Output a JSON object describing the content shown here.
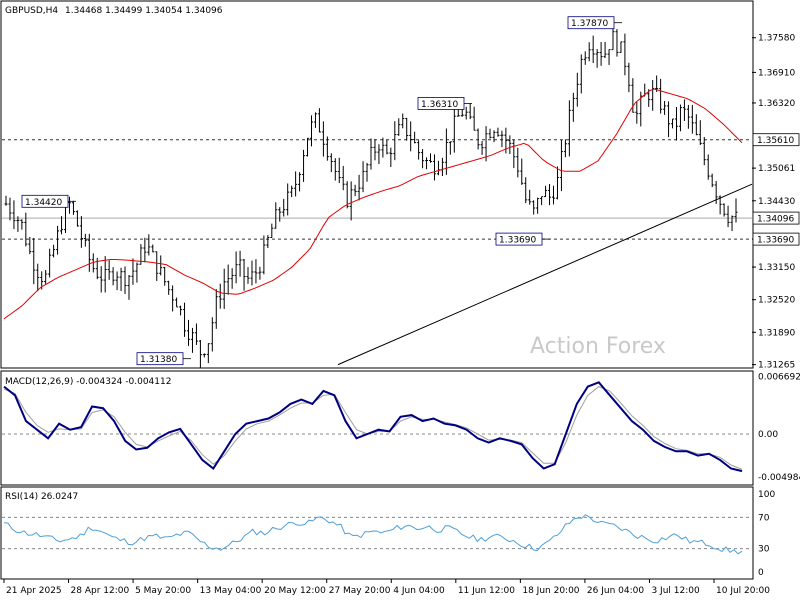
{
  "header": {
    "symbol": "GBPUSD,H4",
    "ohlc": "1.34468 1.34499 1.34054 1.34096"
  },
  "watermark": "Action Forex",
  "colors": {
    "price": "#000000",
    "ma": "#e00000",
    "macd": "#000080",
    "signal": "#a0a0a0",
    "rsi": "#4f9fd8",
    "price_box_bg": "#ffffff",
    "current_box_bg": "#ffffff"
  },
  "chart_data": [
    {
      "type": "candlestick",
      "title": "GBPUSD,H4",
      "ylim": [
        1.312,
        1.3827
      ],
      "y_ticks": [
        "1.37580",
        "1.36910",
        "1.36320",
        "1.35061",
        "1.34430",
        "1.33690",
        "1.33150",
        "1.32520",
        "1.31890",
        "1.31265"
      ],
      "x_ticks": [
        "21 Apr 2025",
        "28 Apr 12:00",
        "5 May 20:00",
        "13 May 04:00",
        "20 May 12:00",
        "27 May 20:00",
        "4 Jun 04:00",
        "11 Jun 12:00",
        "18 Jun 20:00",
        "26 Jun 04:00",
        "3 Jul 12:00",
        "10 Jul 20:00"
      ],
      "price_labels": [
        {
          "value": 1.3442,
          "text": "1.34420"
        },
        {
          "value": 1.3631,
          "text": "1.36310"
        },
        {
          "value": 1.3787,
          "text": "1.37870"
        },
        {
          "value": 1.3369,
          "text": "1.33690"
        },
        {
          "value": 1.3138,
          "text": "1.31380"
        }
      ],
      "horizontal_levels": [
        {
          "value": 1.3561,
          "text": "1.35610",
          "style": "dashed"
        },
        {
          "value": 1.3369,
          "text": "1.33690",
          "style": "dashed"
        },
        {
          "value": 1.34096,
          "text": "1.34096",
          "style": "solid-grey"
        }
      ],
      "trendline": {
        "from": 1.31265,
        "to": 1.3475
      },
      "close_path": [
        1.3437,
        1.342,
        1.3398,
        1.3345,
        1.331,
        1.329,
        1.334,
        1.3395,
        1.3442,
        1.3405,
        1.336,
        1.3318,
        1.33,
        1.3292,
        1.331,
        1.3295,
        1.33,
        1.3325,
        1.336,
        1.333,
        1.33,
        1.327,
        1.325,
        1.3205,
        1.318,
        1.315,
        1.317,
        1.324,
        1.3285,
        1.33,
        1.3315,
        1.329,
        1.33,
        1.333,
        1.338,
        1.342,
        1.344,
        1.346,
        1.352,
        1.358,
        1.36,
        1.356,
        1.352,
        1.347,
        1.3445,
        1.347,
        1.349,
        1.353,
        1.3555,
        1.353,
        1.356,
        1.359,
        1.357,
        1.354,
        1.352,
        1.351,
        1.3525,
        1.356,
        1.36,
        1.362,
        1.358,
        1.3555,
        1.3575,
        1.359,
        1.357,
        1.3545,
        1.3505,
        1.344,
        1.342,
        1.346,
        1.345,
        1.348,
        1.356,
        1.364,
        1.371,
        1.375,
        1.374,
        1.3725,
        1.376,
        1.374,
        1.37,
        1.36,
        1.364,
        1.3655,
        1.364,
        1.361,
        1.358,
        1.362,
        1.36,
        1.356,
        1.352,
        1.348,
        1.344,
        1.3415,
        1.3409
      ],
      "ma_path": [
        1.3215,
        1.324,
        1.3275,
        1.3295,
        1.331,
        1.3325,
        1.333,
        1.3328,
        1.3325,
        1.332,
        1.33,
        1.3285,
        1.3265,
        1.3262,
        1.3275,
        1.329,
        1.3315,
        1.335,
        1.341,
        1.3435,
        1.345,
        1.3462,
        1.3472,
        1.349,
        1.35,
        1.351,
        1.352,
        1.353,
        1.3545,
        1.3555,
        1.352,
        1.35,
        1.35,
        1.352,
        1.357,
        1.363,
        1.366,
        1.365,
        1.364,
        1.362,
        1.359,
        1.3555
      ]
    },
    {
      "type": "line",
      "title": "MACD(12,26,9) -0.004324 -0.004112",
      "ylim": [
        -0.0058,
        0.0072
      ],
      "y_ticks": [
        "0.006692",
        "0.00",
        "-0.004984"
      ],
      "series": [
        {
          "name": "MACD",
          "values": [
            0.0055,
            0.0045,
            0.0015,
            0.0005,
            -0.0005,
            0.0012,
            0.0005,
            0.0008,
            0.0032,
            0.003,
            0.0015,
            -0.0008,
            -0.0018,
            -0.0016,
            -0.0005,
            0.0002,
            0.0006,
            -0.0012,
            -0.003,
            -0.004,
            -0.002,
            0.0,
            0.0012,
            0.0015,
            0.0018,
            0.0025,
            0.0035,
            0.004,
            0.0035,
            0.005,
            0.0045,
            0.0015,
            -0.0005,
            0.0,
            0.0005,
            0.0003,
            0.002,
            0.0022,
            0.0015,
            0.0018,
            0.0012,
            0.001,
            0.0005,
            -0.0005,
            -0.001,
            -0.0005,
            -0.0008,
            -0.0012,
            -0.0028,
            -0.004,
            -0.0035,
            0.0,
            0.0035,
            0.0055,
            0.006,
            0.0045,
            0.003,
            0.0015,
            0.0005,
            -0.0008,
            -0.0015,
            -0.002,
            -0.002,
            -0.0025,
            -0.0023,
            -0.003,
            -0.004,
            -0.0043
          ]
        },
        {
          "name": "Signal",
          "values": [
            0.0052,
            0.0047,
            0.0025,
            0.001,
            0.0002,
            0.0006,
            0.0005,
            0.0006,
            0.0025,
            0.0028,
            0.002,
            0.0002,
            -0.0012,
            -0.0015,
            -0.0008,
            -0.0002,
            0.0003,
            -0.0008,
            -0.0024,
            -0.0035,
            -0.0025,
            -0.0008,
            0.0006,
            0.0012,
            0.0015,
            0.0022,
            0.003,
            0.0036,
            0.0036,
            0.0045,
            0.0046,
            0.0025,
            0.0005,
            0.0,
            0.0003,
            0.0003,
            0.0015,
            0.002,
            0.0017,
            0.0017,
            0.0014,
            0.0011,
            0.0007,
            0.0,
            -0.0007,
            -0.0006,
            -0.0007,
            -0.001,
            -0.0022,
            -0.0034,
            -0.0034,
            -0.001,
            0.0022,
            0.0045,
            0.0055,
            0.005,
            0.0036,
            0.0021,
            0.001,
            -0.0003,
            -0.0011,
            -0.0017,
            -0.0019,
            -0.0023,
            -0.0023,
            -0.0027,
            -0.0036,
            -0.0041
          ]
        }
      ]
    },
    {
      "type": "line",
      "title": "RSI(14) 26.0247",
      "ylim": [
        0,
        100
      ],
      "y_ticks": [
        "100",
        "70",
        "30",
        "0"
      ],
      "series": [
        {
          "name": "RSI",
          "values": [
            62,
            55,
            50,
            48,
            44,
            40,
            42,
            46,
            58,
            52,
            44,
            40,
            38,
            44,
            46,
            42,
            48,
            50,
            40,
            32,
            30,
            36,
            44,
            52,
            50,
            56,
            60,
            64,
            62,
            70,
            66,
            58,
            44,
            48,
            52,
            50,
            55,
            60,
            56,
            58,
            54,
            56,
            50,
            44,
            42,
            46,
            44,
            40,
            34,
            30,
            36,
            48,
            62,
            72,
            70,
            62,
            60,
            55,
            48,
            44,
            40,
            44,
            48,
            40,
            38,
            36,
            30,
            27,
            26
          ]
        }
      ]
    }
  ]
}
